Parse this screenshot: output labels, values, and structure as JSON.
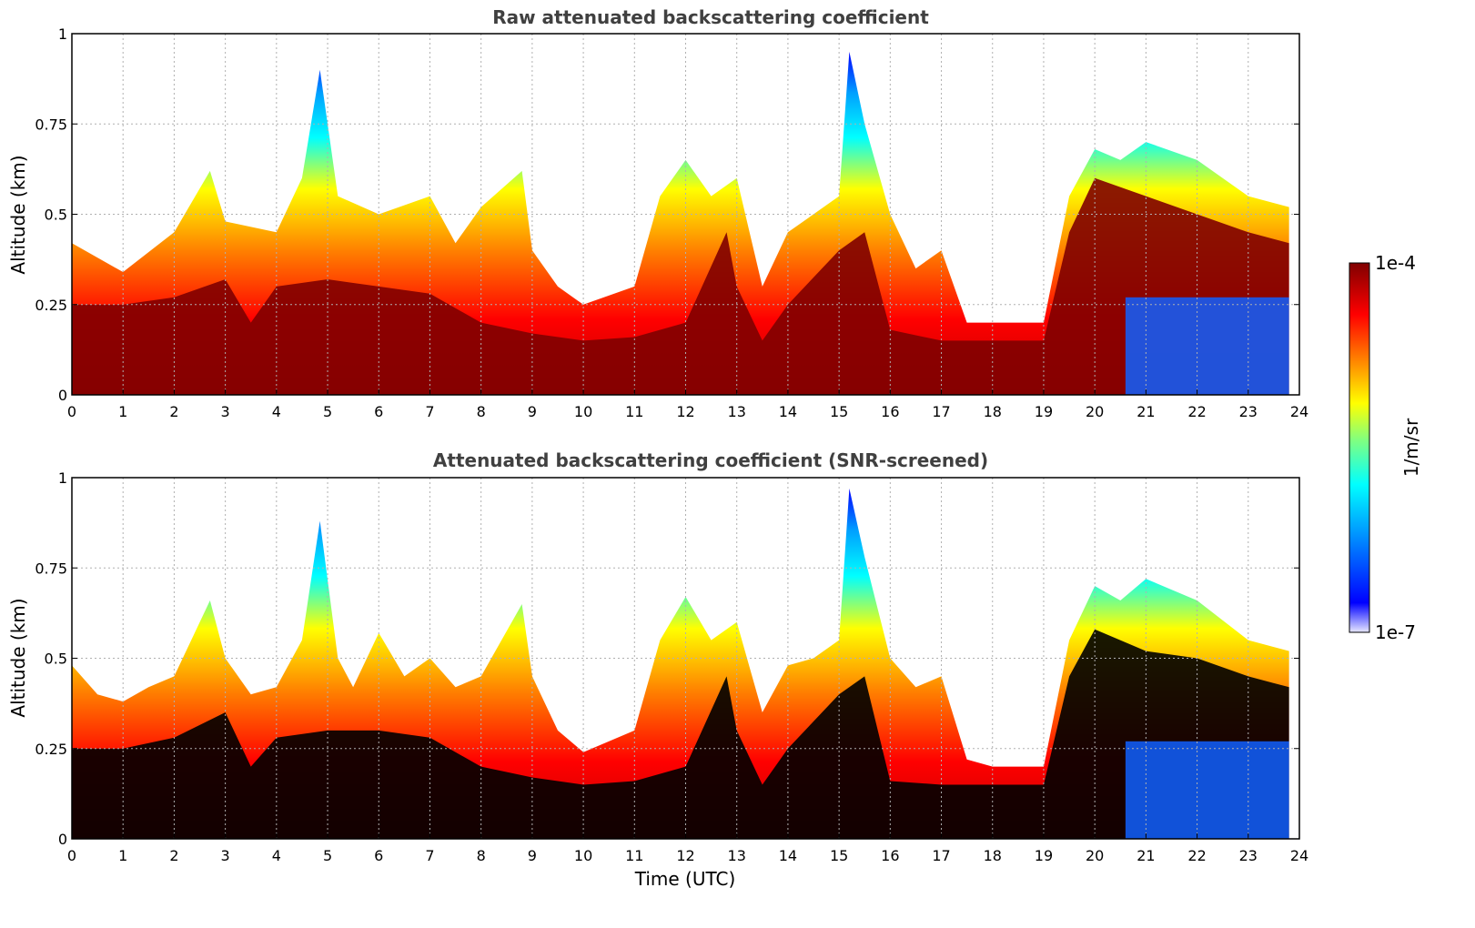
{
  "figure": {
    "xlabel": "Time (UTC)"
  },
  "colorbar": {
    "max_label": "1e-4",
    "min_label": "1e-7",
    "unit_label": "1/m/sr",
    "scale": "log",
    "colormap": [
      "#e8e8ff",
      "#0000ff",
      "#00a0ff",
      "#00ffff",
      "#80ff80",
      "#ffff00",
      "#ff8000",
      "#ff0000",
      "#800000"
    ]
  },
  "chart_data": [
    {
      "type": "heatmap",
      "title": "Raw attenuated backscattering coefficient",
      "xlabel": "",
      "ylabel": "Altitude (km)",
      "xlim": [
        0,
        24
      ],
      "ylim": [
        0,
        1
      ],
      "x_ticks": [
        "0",
        "1",
        "2",
        "3",
        "4",
        "5",
        "6",
        "7",
        "8",
        "9",
        "10",
        "11",
        "12",
        "13",
        "14",
        "15",
        "16",
        "17",
        "18",
        "19",
        "20",
        "21",
        "22",
        "23",
        "24"
      ],
      "y_ticks": [
        "0",
        "0.25",
        "0.5",
        "0.75",
        "1"
      ],
      "y_tick_values": [
        0,
        0.25,
        0.5,
        0.75,
        1
      ],
      "grid": true,
      "colorbar_range": [
        1e-07,
        0.0001
      ],
      "colorbar_unit": "1/m/sr",
      "layer_top_km": [
        [
          0,
          0.42
        ],
        [
          1,
          0.34
        ],
        [
          2,
          0.45
        ],
        [
          2.7,
          0.62
        ],
        [
          3,
          0.48
        ],
        [
          4,
          0.45
        ],
        [
          4.5,
          0.6
        ],
        [
          4.85,
          0.9
        ],
        [
          5.2,
          0.55
        ],
        [
          6,
          0.5
        ],
        [
          7,
          0.55
        ],
        [
          7.5,
          0.42
        ],
        [
          8,
          0.52
        ],
        [
          8.8,
          0.62
        ],
        [
          9,
          0.4
        ],
        [
          9.5,
          0.3
        ],
        [
          10,
          0.25
        ],
        [
          11,
          0.3
        ],
        [
          11.5,
          0.55
        ],
        [
          12,
          0.65
        ],
        [
          12.5,
          0.55
        ],
        [
          13,
          0.6
        ],
        [
          13.5,
          0.3
        ],
        [
          14,
          0.45
        ],
        [
          14.5,
          0.5
        ],
        [
          15,
          0.55
        ],
        [
          15.2,
          0.95
        ],
        [
          15.5,
          0.75
        ],
        [
          16,
          0.5
        ],
        [
          16.5,
          0.35
        ],
        [
          17,
          0.4
        ],
        [
          17.5,
          0.2
        ],
        [
          18,
          0.2
        ],
        [
          19,
          0.2
        ],
        [
          19.5,
          0.55
        ],
        [
          20,
          0.68
        ],
        [
          20.5,
          0.65
        ],
        [
          21,
          0.7
        ],
        [
          22,
          0.65
        ],
        [
          23,
          0.55
        ],
        [
          23.8,
          0.52
        ]
      ],
      "dense_layer_top_km": [
        [
          0,
          0.25
        ],
        [
          1,
          0.25
        ],
        [
          2,
          0.27
        ],
        [
          3,
          0.32
        ],
        [
          3.5,
          0.2
        ],
        [
          4,
          0.3
        ],
        [
          5,
          0.32
        ],
        [
          6,
          0.3
        ],
        [
          7,
          0.28
        ],
        [
          8,
          0.2
        ],
        [
          9,
          0.17
        ],
        [
          10,
          0.15
        ],
        [
          11,
          0.16
        ],
        [
          12,
          0.2
        ],
        [
          12.8,
          0.45
        ],
        [
          13,
          0.3
        ],
        [
          13.5,
          0.15
        ],
        [
          14,
          0.25
        ],
        [
          15,
          0.4
        ],
        [
          15.5,
          0.45
        ],
        [
          16,
          0.18
        ],
        [
          17,
          0.15
        ],
        [
          18,
          0.15
        ],
        [
          19,
          0.15
        ],
        [
          19.5,
          0.45
        ],
        [
          20,
          0.6
        ],
        [
          21,
          0.55
        ],
        [
          22,
          0.5
        ],
        [
          23,
          0.45
        ],
        [
          23.8,
          0.42
        ]
      ]
    },
    {
      "type": "heatmap",
      "title": "Attenuated backscattering coefficient (SNR-screened)",
      "xlabel": "Time (UTC)",
      "ylabel": "Altitude (km)",
      "xlim": [
        0,
        24
      ],
      "ylim": [
        0,
        1
      ],
      "x_ticks": [
        "0",
        "1",
        "2",
        "3",
        "4",
        "5",
        "6",
        "7",
        "8",
        "9",
        "10",
        "11",
        "12",
        "13",
        "14",
        "15",
        "16",
        "17",
        "18",
        "19",
        "20",
        "21",
        "22",
        "23",
        "24"
      ],
      "y_ticks": [
        "0",
        "0.25",
        "0.5",
        "0.75",
        "1"
      ],
      "y_tick_values": [
        0,
        0.25,
        0.5,
        0.75,
        1
      ],
      "grid": true,
      "colorbar_range": [
        1e-07,
        0.0001
      ],
      "colorbar_unit": "1/m/sr",
      "layer_top_km": [
        [
          0,
          0.48
        ],
        [
          0.5,
          0.4
        ],
        [
          1,
          0.38
        ],
        [
          1.5,
          0.42
        ],
        [
          2,
          0.45
        ],
        [
          2.7,
          0.66
        ],
        [
          3,
          0.5
        ],
        [
          3.5,
          0.4
        ],
        [
          4,
          0.42
        ],
        [
          4.5,
          0.55
        ],
        [
          4.85,
          0.88
        ],
        [
          5.2,
          0.5
        ],
        [
          5.5,
          0.42
        ],
        [
          6,
          0.57
        ],
        [
          6.5,
          0.45
        ],
        [
          7,
          0.5
        ],
        [
          7.5,
          0.42
        ],
        [
          8,
          0.45
        ],
        [
          8.8,
          0.65
        ],
        [
          9,
          0.45
        ],
        [
          9.5,
          0.3
        ],
        [
          10,
          0.24
        ],
        [
          11,
          0.3
        ],
        [
          11.5,
          0.55
        ],
        [
          12,
          0.67
        ],
        [
          12.5,
          0.55
        ],
        [
          13,
          0.6
        ],
        [
          13.5,
          0.35
        ],
        [
          14,
          0.48
        ],
        [
          14.5,
          0.5
        ],
        [
          15,
          0.55
        ],
        [
          15.2,
          0.97
        ],
        [
          15.5,
          0.78
        ],
        [
          16,
          0.5
        ],
        [
          16.5,
          0.42
        ],
        [
          17,
          0.45
        ],
        [
          17.5,
          0.22
        ],
        [
          18,
          0.2
        ],
        [
          19,
          0.2
        ],
        [
          19.5,
          0.55
        ],
        [
          20,
          0.7
        ],
        [
          20.5,
          0.66
        ],
        [
          21,
          0.72
        ],
        [
          22,
          0.66
        ],
        [
          23,
          0.55
        ],
        [
          23.8,
          0.52
        ]
      ],
      "dense_layer_top_km": [
        [
          0,
          0.25
        ],
        [
          1,
          0.25
        ],
        [
          2,
          0.28
        ],
        [
          3,
          0.35
        ],
        [
          3.5,
          0.2
        ],
        [
          4,
          0.28
        ],
        [
          5,
          0.3
        ],
        [
          6,
          0.3
        ],
        [
          7,
          0.28
        ],
        [
          8,
          0.2
        ],
        [
          9,
          0.17
        ],
        [
          10,
          0.15
        ],
        [
          11,
          0.16
        ],
        [
          12,
          0.2
        ],
        [
          12.8,
          0.45
        ],
        [
          13,
          0.3
        ],
        [
          13.5,
          0.15
        ],
        [
          14,
          0.25
        ],
        [
          15,
          0.4
        ],
        [
          15.5,
          0.45
        ],
        [
          16,
          0.16
        ],
        [
          17,
          0.15
        ],
        [
          18,
          0.15
        ],
        [
          19,
          0.15
        ],
        [
          19.5,
          0.45
        ],
        [
          20,
          0.58
        ],
        [
          21,
          0.52
        ],
        [
          22,
          0.5
        ],
        [
          23,
          0.45
        ],
        [
          23.8,
          0.42
        ]
      ]
    }
  ]
}
